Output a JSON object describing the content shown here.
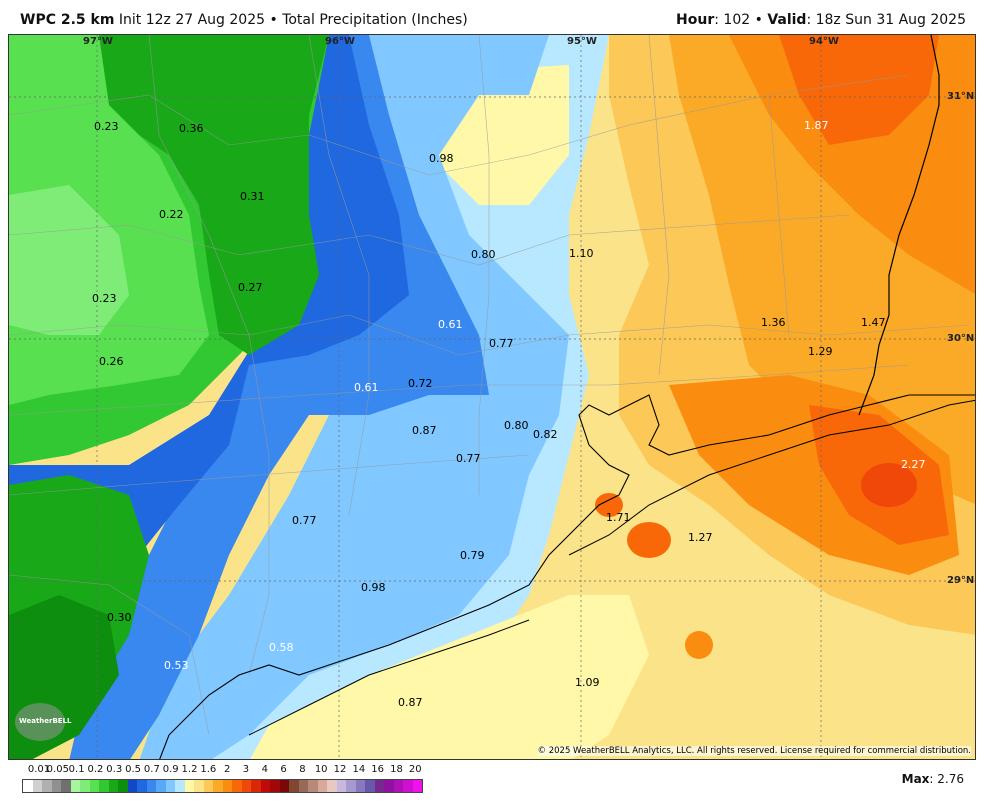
{
  "header": {
    "model": "WPC 2.5 km",
    "init": "Init 12z 27 Aug 2025",
    "bullet": "•",
    "field": "Total Precipitation (Inches)",
    "hour_label": "Hour",
    "hour_value": ": 102",
    "valid_label": "Valid",
    "valid_value": ": 18z Sun 31 Aug 2025"
  },
  "coords": {
    "lon_97": "97°W",
    "lon_96": "96°W",
    "lon_95": "95°W",
    "lon_94": "94°W",
    "lat_31": "31°N",
    "lat_30": "30°N",
    "lat_29": "29°N"
  },
  "labels": [
    "0.23",
    "0.36",
    "0.98",
    "1.87",
    "0.31",
    "0.22",
    "0.80",
    "1.10",
    "0.27",
    "0.23",
    "0.61",
    "1.36",
    "1.47",
    "0.77",
    "1.29",
    "0.26",
    "0.61",
    "0.72",
    "0.87",
    "0.80",
    "0.82",
    "0.77",
    "2.27",
    "1.71",
    "0.77",
    "1.27",
    "0.79",
    "0.98",
    "0.30",
    "0.58",
    "0.53",
    "1.09",
    "0.87"
  ],
  "copyright": "© 2025 WeatherBELL Analytics, LLC. All rights reserved. License required for commercial distribution.",
  "logo_text": "WeatherBELL",
  "legend": {
    "ticks": [
      "0.01",
      "0.05",
      "0.1",
      "0.2",
      "0.3",
      "0.5",
      "0.7",
      "0.9",
      "1.2",
      "1.6",
      "2",
      "3",
      "4",
      "6",
      "8",
      "10",
      "12",
      "14",
      "16",
      "18",
      "20"
    ],
    "colors": [
      "#ffffff",
      "#d0d0d0",
      "#b0b0b0",
      "#909090",
      "#707070",
      "#a8f5a0",
      "#80ec78",
      "#58e050",
      "#32c832",
      "#18a818",
      "#0e8e0e",
      "#1048c8",
      "#2068e0",
      "#3888f0",
      "#58a8f8",
      "#80c8ff",
      "#b8e8ff",
      "#fff8a8",
      "#fbe38a",
      "#fcc858",
      "#fbaa28",
      "#fa8c10",
      "#f86808",
      "#f04808",
      "#d82808",
      "#c00a0a",
      "#a00808",
      "#7a0808",
      "#804830",
      "#986858",
      "#b88878",
      "#d8a898",
      "#e8c8c0",
      "#c8b8e0",
      "#a898d0",
      "#8878c0",
      "#6858a8",
      "#782890",
      "#9010a0",
      "#b010b8",
      "#d010d0",
      "#f010f0"
    ],
    "max_label": "Max",
    "max_value": ": 2.76"
  }
}
